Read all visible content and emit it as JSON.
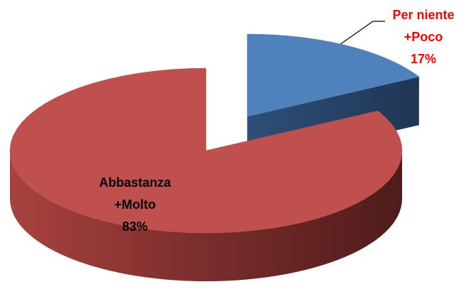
{
  "chart_data": {
    "type": "pie",
    "categories": [
      "Per niente +Poco",
      "Abbastanza +Molto"
    ],
    "values": [
      17,
      83
    ],
    "value_labels": [
      "17%",
      "83%"
    ],
    "colors": [
      "#4f81bd",
      "#c0504d"
    ],
    "label_colors": [
      "#ff0000",
      "#000000"
    ]
  }
}
